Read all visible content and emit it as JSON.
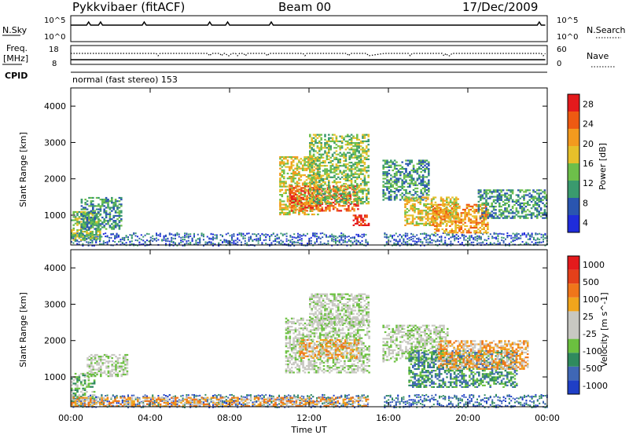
{
  "header": {
    "station": "Pykkvibaer (fitACF)",
    "beam": "Beam 00",
    "date": "17/Dec/2009"
  },
  "panels": {
    "nsky_label": "N.Sky",
    "nsky_top": "10^5",
    "nsky_bottom": "10^0",
    "nsearch_label": "N.Search",
    "nsearch_top": "10^5",
    "nsearch_bottom": "10^0",
    "freq_label_line1": "Freq.",
    "freq_label_line2": "[MHz]",
    "freq_top": "18",
    "freq_bottom": "8",
    "nave_label": "Nave",
    "nave_top": "60",
    "nave_bottom": "0",
    "cpid_label": "CPID",
    "cpid_text": "normal (fast stereo) 153"
  },
  "colors": {
    "power_scale": [
      "#1f2cdb",
      "#2a55b0",
      "#3a9a6e",
      "#6dbf4a",
      "#e6c02a",
      "#f39a1e",
      "#ee5a12",
      "#e41a1c"
    ],
    "velocity_scale": [
      "#1f3fc6",
      "#3f67b5",
      "#2f8a5e",
      "#6bc03f",
      "#c8c8c2",
      "#c8c8c2",
      "#f1a51c",
      "#f0761a",
      "#e4401a",
      "#e41a1c"
    ]
  },
  "chart_data": [
    {
      "type": "heatmap",
      "name": "power",
      "ylabel": "Slant Range [km]",
      "colorbar_label": "Power [dB]",
      "colorbar_ticks": [
        "28",
        "24",
        "20",
        "16",
        "12",
        "8",
        "4"
      ],
      "y_ticks": [
        "4000",
        "3000",
        "2000",
        "1000"
      ],
      "x_ticks": [
        "00:00",
        "04:00",
        "08:00",
        "12:00",
        "16:00",
        "20:00",
        "00:00"
      ],
      "xlim": [
        0,
        24
      ],
      "ylim": [
        180,
        4500
      ],
      "data_gap_hours": [
        15.0,
        15.7
      ],
      "regions": [
        {
          "x": [
            0.0,
            1.5
          ],
          "y": [
            300,
            1100
          ],
          "level": 3
        },
        {
          "x": [
            0.5,
            2.5
          ],
          "y": [
            600,
            1500
          ],
          "level": 2
        },
        {
          "x": [
            10.5,
            12.5
          ],
          "y": [
            1000,
            2600
          ],
          "level": 4
        },
        {
          "x": [
            11.0,
            14.5
          ],
          "y": [
            1100,
            1800
          ],
          "level": 6
        },
        {
          "x": [
            12.0,
            15.0
          ],
          "y": [
            1300,
            3200
          ],
          "level": 3
        },
        {
          "x": [
            14.2,
            15.0
          ],
          "y": [
            700,
            1000
          ],
          "level": 7
        },
        {
          "x": [
            15.7,
            18.0
          ],
          "y": [
            1400,
            2500
          ],
          "level": 2
        },
        {
          "x": [
            16.8,
            19.5
          ],
          "y": [
            700,
            1500
          ],
          "level": 4
        },
        {
          "x": [
            18.2,
            21.0
          ],
          "y": [
            500,
            1300
          ],
          "level": 5
        },
        {
          "x": [
            20.5,
            24.0
          ],
          "y": [
            900,
            1700
          ],
          "level": 2
        }
      ]
    },
    {
      "type": "heatmap",
      "name": "velocity",
      "ylabel": "Slant Range [km]",
      "xlabel": "Time UT",
      "colorbar_label": "Velocity [m s^-1]",
      "colorbar_ticks": [
        "1000",
        "500",
        "100",
        "25",
        "-25",
        "-100",
        "-500",
        "-1000"
      ],
      "y_ticks": [
        "4000",
        "3000",
        "2000",
        "1000"
      ],
      "x_ticks": [
        "00:00",
        "04:00",
        "08:00",
        "12:00",
        "16:00",
        "20:00",
        "00:00"
      ],
      "xlim": [
        0,
        24
      ],
      "ylim": [
        180,
        4500
      ],
      "data_gap_hours": [
        15.0,
        15.7
      ],
      "regions": [
        {
          "x": [
            0.0,
            1.2
          ],
          "y": [
            300,
            1100
          ],
          "level": 3
        },
        {
          "x": [
            0.8,
            2.8
          ],
          "y": [
            1000,
            1600
          ],
          "level": 4
        },
        {
          "x": [
            10.8,
            15.0
          ],
          "y": [
            1100,
            2600
          ],
          "level": 4
        },
        {
          "x": [
            11.5,
            14.5
          ],
          "y": [
            1500,
            2000
          ],
          "level": 6
        },
        {
          "x": [
            12.0,
            15.0
          ],
          "y": [
            2400,
            3300
          ],
          "level": 4
        },
        {
          "x": [
            15.7,
            19.0
          ],
          "y": [
            1400,
            2400
          ],
          "level": 4
        },
        {
          "x": [
            17.0,
            22.5
          ],
          "y": [
            700,
            1700
          ],
          "level": 2
        },
        {
          "x": [
            18.5,
            23.0
          ],
          "y": [
            1200,
            2000
          ],
          "level": 6
        },
        {
          "x": [
            0.0,
            15.0
          ],
          "y": [
            180,
            450
          ],
          "level": 6
        }
      ]
    }
  ]
}
